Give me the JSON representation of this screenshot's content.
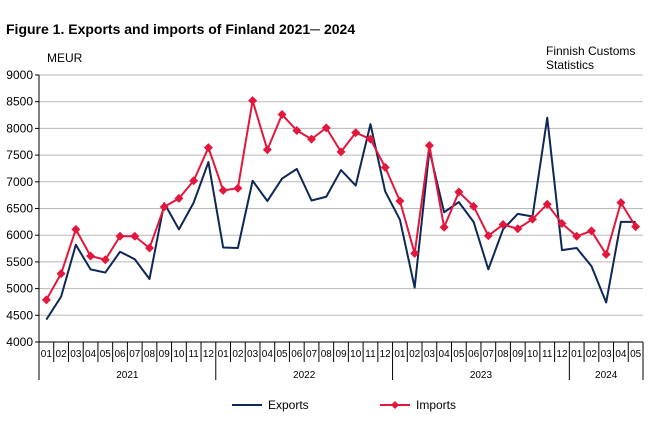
{
  "figure": {
    "title": "Figure 1. Exports and imports of Finland 2021─ 2024",
    "unit": "MEUR",
    "source_line1": "Finnish Customs",
    "source_line2": "Statistics"
  },
  "colors": {
    "exports": "#0d2758",
    "imports": "#e3173d",
    "grid": "#b8b8b8"
  },
  "chart_data": {
    "type": "line",
    "title": "Figure 1. Exports and imports of Finland 2021─ 2024",
    "ylabel": "MEUR",
    "xlabel": "",
    "ylim": [
      4000,
      9000
    ],
    "yticks": [
      4000,
      4500,
      5000,
      5500,
      6000,
      6500,
      7000,
      7500,
      8000,
      8500,
      9000
    ],
    "grid": true,
    "legend": "bottom",
    "categories": [
      "01",
      "02",
      "03",
      "04",
      "05",
      "06",
      "07",
      "08",
      "09",
      "10",
      "11",
      "12",
      "01",
      "02",
      "03",
      "04",
      "05",
      "06",
      "07",
      "08",
      "09",
      "10",
      "11",
      "12",
      "01",
      "02",
      "03",
      "04",
      "05",
      "06",
      "07",
      "08",
      "09",
      "10",
      "11",
      "12",
      "01",
      "02",
      "03",
      "04",
      "05"
    ],
    "years": [
      {
        "label": "2021",
        "start": 0,
        "count": 12
      },
      {
        "label": "2022",
        "start": 12,
        "count": 12
      },
      {
        "label": "2023",
        "start": 24,
        "count": 12
      },
      {
        "label": "2024",
        "start": 36,
        "count": 5
      }
    ],
    "series": [
      {
        "name": "Exports",
        "marker": "none",
        "values": [
          4420,
          4850,
          5820,
          5360,
          5300,
          5690,
          5550,
          5180,
          6600,
          6110,
          6610,
          7370,
          5770,
          5760,
          7020,
          6640,
          7060,
          7240,
          6650,
          6720,
          7220,
          6930,
          8080,
          6820,
          6290,
          5020,
          7590,
          6430,
          6620,
          6250,
          5360,
          6110,
          6400,
          6350,
          8200,
          5720,
          5760,
          5420,
          4740,
          6250,
          6250
        ]
      },
      {
        "name": "Imports",
        "marker": "diamond",
        "values": [
          4790,
          5280,
          6110,
          5610,
          5540,
          5980,
          5980,
          5760,
          6530,
          6690,
          7020,
          7640,
          6840,
          6880,
          8520,
          7600,
          8260,
          7960,
          7800,
          8010,
          7560,
          7920,
          7800,
          7270,
          6640,
          5660,
          7680,
          6150,
          6810,
          6540,
          5990,
          6200,
          6120,
          6300,
          6580,
          6220,
          5980,
          6080,
          5640,
          6610,
          6160
        ]
      }
    ]
  }
}
